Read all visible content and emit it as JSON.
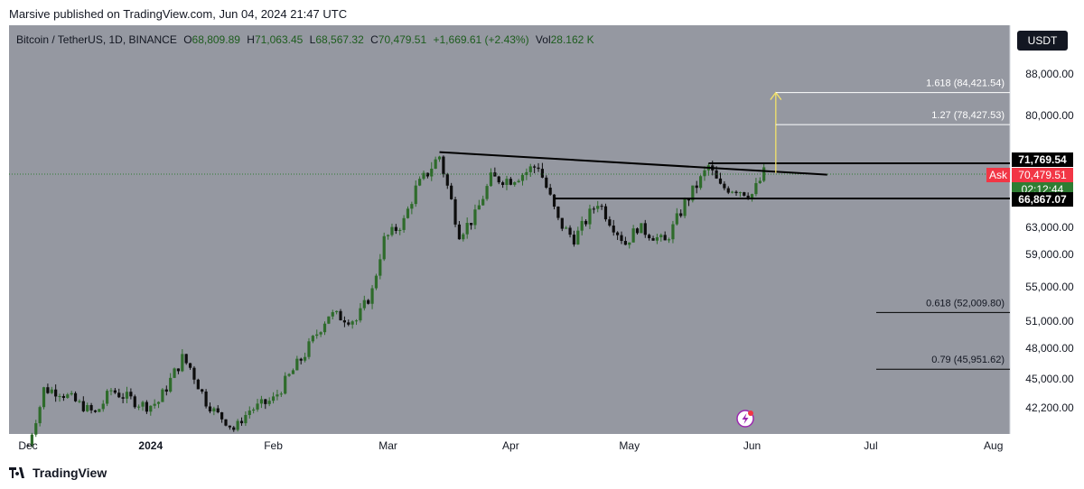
{
  "header": {
    "published_by": "Marsive published on TradingView.com, Jun 04, 2024 21:47 UTC"
  },
  "legend": {
    "symbol": "Bitcoin / TetherUS, 1D, BINANCE",
    "o_label": "O",
    "o": "68,809.89",
    "h_label": "H",
    "h": "71,063.45",
    "l_label": "L",
    "l": "68,567.32",
    "c_label": "C",
    "c": "70,479.51",
    "change": "+1,669.61 (+2.43%)",
    "vol_label": "Vol",
    "vol": "28.162 K"
  },
  "currency_button": "USDT",
  "footer": {
    "brand": "TradingView",
    "logo_icon": "tradingview-logo-icon"
  },
  "colors": {
    "panel_bg": "#9598a1",
    "up": "#2e6b2b",
    "down": "#0d0d0d",
    "fib": "#ffffff",
    "target_arrow": "#f3e26a",
    "ask": "#f23645",
    "price_tag": "#2e7d32"
  },
  "chart_data": {
    "type": "candlestick",
    "x_ticks": [
      "Dec",
      "2024",
      "Feb",
      "Mar",
      "Apr",
      "May",
      "Jun",
      "Jul",
      "Aug"
    ],
    "y_ticks": [
      "88,000.00",
      "80,000.00",
      "63,000.00",
      "59,000.00",
      "55,000.00",
      "51,000.00",
      "48,000.00",
      "45,000.00",
      "42,200.00"
    ],
    "price_labels": {
      "resistance": "71,769.54",
      "current": "70,479.51",
      "countdown": "02:12:44",
      "support": "66,867.07",
      "ask": "Ask"
    },
    "fib_levels": [
      {
        "label": "1.618 (84,421.54)",
        "value": 84421.54
      },
      {
        "label": "1.27 (78,427.53)",
        "value": 78427.53
      },
      {
        "label": "0.618 (52,009.80)",
        "value": 52009.8
      },
      {
        "label": "0.79 (45,951.62)",
        "value": 45951.62
      }
    ],
    "support_level": 66867.07,
    "resistance_level": 71769.54,
    "current_price": 70479.51,
    "trendline": {
      "from": [
        "2024-03-14",
        73700
      ],
      "to": [
        "2024-06-20",
        70400
      ]
    },
    "support_line_start": "2024-04-12",
    "resistance_line_start": "2024-05-21",
    "target_arrow": {
      "date": "2024-06-07",
      "from": 70600,
      "to": 84421.54
    },
    "candles_monthly_closes": [
      {
        "date": "2023-12-01",
        "close": 37700
      },
      {
        "date": "2024-01-01",
        "close": 42300
      },
      {
        "date": "2024-02-01",
        "close": 42600
      },
      {
        "date": "2024-03-01",
        "close": 62400
      },
      {
        "date": "2024-04-01",
        "close": 71300
      },
      {
        "date": "2024-05-01",
        "close": 60600
      },
      {
        "date": "2024-06-01",
        "close": 70479.51
      }
    ]
  }
}
